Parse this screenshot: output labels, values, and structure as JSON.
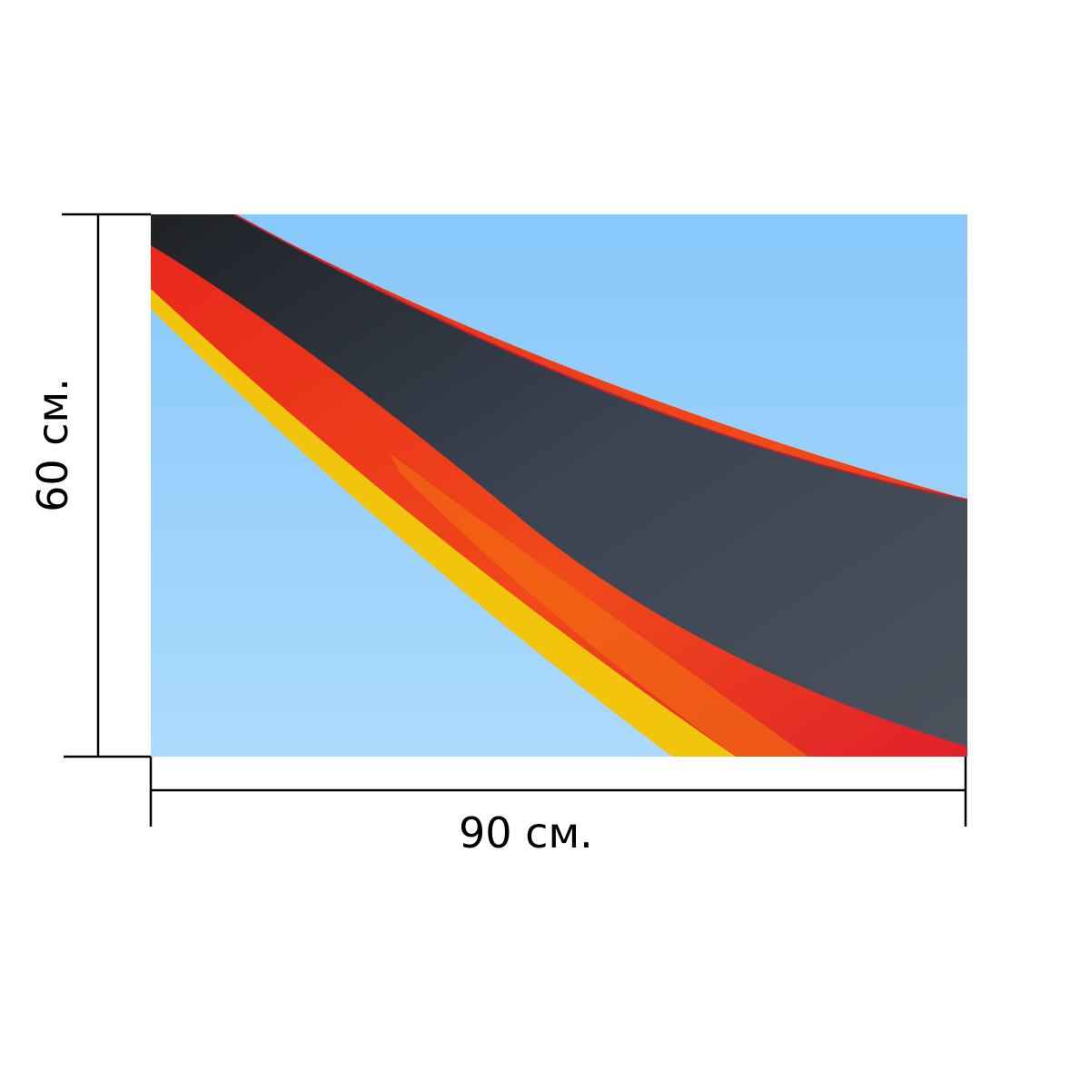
{
  "dimensions": {
    "width_label": "90 см.",
    "height_label": "60 см."
  },
  "photo": {
    "subject": "german-flag-waving",
    "colors": {
      "sky": "#8fcbfb",
      "black": "#2a2d33",
      "red": "#e8261c",
      "gold": "#f2c40c"
    }
  }
}
